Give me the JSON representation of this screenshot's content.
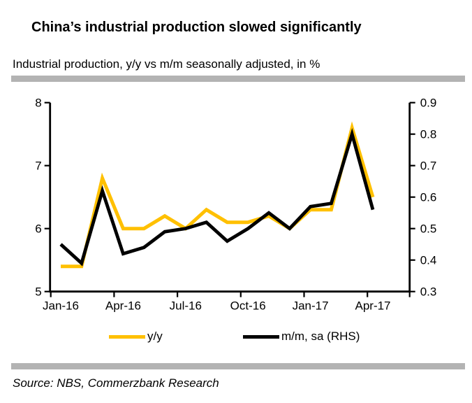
{
  "chart_data": {
    "type": "line",
    "title": "China’s industrial production slowed significantly",
    "subtitle": "Industrial production, y/y vs m/m seasonally adjusted, in %",
    "source": "Source: NBS, Commerzbank Research",
    "x_categories": [
      "Jan-16",
      "Feb-16",
      "Mar-16",
      "Apr-16",
      "May-16",
      "Jun-16",
      "Jul-16",
      "Aug-16",
      "Sep-16",
      "Oct-16",
      "Nov-16",
      "Dec-16",
      "Jan-17",
      "Feb-17",
      "Mar-17",
      "Apr-17"
    ],
    "x_tick_labels": [
      "Jan-16",
      "Apr-16",
      "Jul-16",
      "Oct-16",
      "Jan-17",
      "Apr-17"
    ],
    "series": [
      {
        "name": "y/y",
        "axis": "left",
        "color": "#FFC000",
        "values": [
          5.4,
          5.4,
          6.8,
          6.0,
          6.0,
          6.2,
          6.0,
          6.3,
          6.1,
          6.1,
          6.2,
          6.0,
          6.3,
          6.3,
          7.6,
          6.5
        ]
      },
      {
        "name": "m/m, sa (RHS)",
        "axis": "right",
        "color": "#000000",
        "values": [
          0.45,
          0.39,
          0.62,
          0.42,
          0.44,
          0.49,
          0.5,
          0.52,
          0.46,
          0.5,
          0.55,
          0.5,
          0.57,
          0.58,
          0.8,
          0.56
        ]
      }
    ],
    "left_axis": {
      "min": 5,
      "max": 8,
      "ticks": [
        5,
        6,
        7,
        8
      ]
    },
    "right_axis": {
      "min": 0.3,
      "max": 0.9,
      "ticks": [
        0.3,
        0.4,
        0.5,
        0.6,
        0.7,
        0.8,
        0.9
      ]
    },
    "grid": false,
    "legend_position": "bottom",
    "unit": "%"
  },
  "colors": {
    "accent_yellow": "#FFC000",
    "line_black": "#000000",
    "rule_gray": "#B3B3B3"
  }
}
